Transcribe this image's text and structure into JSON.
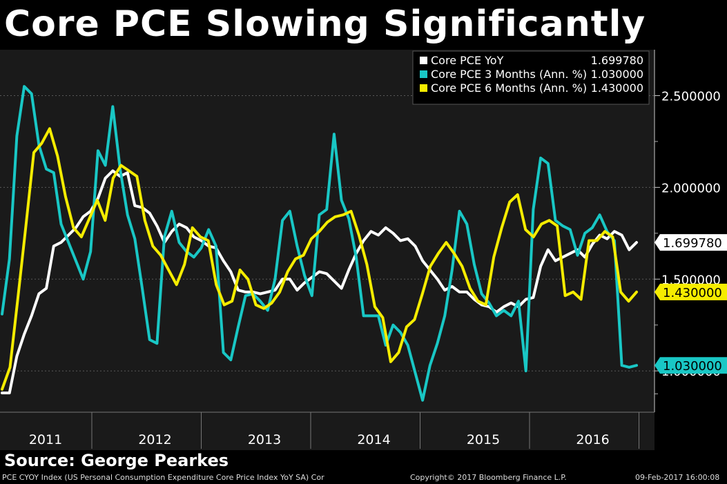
{
  "title": "Core PCE Slowing Significantly",
  "source": "Source: George Pearkes",
  "footer": {
    "index_desc": "PCE CYOY Index (US Personal Consumption Expenditure Core Price Index YoY SA) Cor",
    "copyright": "Copyright© 2017 Bloomberg Finance L.P.",
    "timestamp": "09-Feb-2017 16:00:08"
  },
  "chart_data": {
    "type": "line",
    "title": "Core PCE Slowing Significantly",
    "xlabel": "",
    "ylabel": "",
    "ylim": [
      0.775,
      2.75
    ],
    "y_ticks": [
      {
        "value": 2.5,
        "label": "2.500000"
      },
      {
        "value": 2.0,
        "label": "2.000000"
      },
      {
        "value": 1.5,
        "label": "1.500000"
      },
      {
        "value": 1.0,
        "label": "1.000000"
      }
    ],
    "x_labels": [
      "2011",
      "2012",
      "2013",
      "2014",
      "2015",
      "2016"
    ],
    "x_start": "2011-01",
    "x_end": "2016-12",
    "grid": true,
    "legend_position": "top-right",
    "series": [
      {
        "name": "Core PCE YoY",
        "color": "#ffffff",
        "last_value": "1.699780",
        "values": [
          0.88,
          0.88,
          1.08,
          1.2,
          1.3,
          1.42,
          1.45,
          1.68,
          1.7,
          1.74,
          1.78,
          1.84,
          1.87,
          1.94,
          2.05,
          2.09,
          2.06,
          2.08,
          1.9,
          1.89,
          1.86,
          1.79,
          1.7,
          1.76,
          1.8,
          1.78,
          1.73,
          1.71,
          1.68,
          1.67,
          1.6,
          1.54,
          1.44,
          1.43,
          1.43,
          1.42,
          1.43,
          1.44,
          1.5,
          1.5,
          1.44,
          1.48,
          1.51,
          1.54,
          1.53,
          1.49,
          1.45,
          1.55,
          1.64,
          1.71,
          1.76,
          1.74,
          1.78,
          1.75,
          1.71,
          1.72,
          1.68,
          1.6,
          1.55,
          1.5,
          1.44,
          1.46,
          1.43,
          1.43,
          1.39,
          1.36,
          1.35,
          1.32,
          1.35,
          1.37,
          1.35,
          1.39,
          1.4,
          1.57,
          1.66,
          1.6,
          1.62,
          1.64,
          1.66,
          1.62,
          1.69,
          1.74,
          1.72,
          1.76,
          1.74,
          1.66,
          1.7
        ]
      },
      {
        "name": "Core PCE 3 Months (Ann. %)",
        "color": "#19c7c5",
        "last_value": "1.030000",
        "values": [
          1.31,
          1.61,
          2.28,
          2.55,
          2.51,
          2.23,
          2.1,
          2.08,
          1.8,
          1.7,
          1.6,
          1.5,
          1.65,
          2.2,
          2.12,
          2.44,
          2.1,
          1.85,
          1.72,
          1.45,
          1.17,
          1.15,
          1.73,
          1.87,
          1.7,
          1.65,
          1.62,
          1.67,
          1.77,
          1.68,
          1.1,
          1.06,
          1.24,
          1.41,
          1.42,
          1.38,
          1.33,
          1.5,
          1.82,
          1.87,
          1.68,
          1.52,
          1.41,
          1.85,
          1.88,
          2.29,
          1.93,
          1.83,
          1.62,
          1.3,
          1.3,
          1.3,
          1.14,
          1.25,
          1.21,
          1.14,
          0.99,
          0.84,
          1.03,
          1.15,
          1.3,
          1.55,
          1.87,
          1.8,
          1.58,
          1.42,
          1.37,
          1.3,
          1.33,
          1.3,
          1.38,
          1.0,
          1.88,
          2.16,
          2.13,
          1.82,
          1.79,
          1.77,
          1.63,
          1.75,
          1.78,
          1.85,
          1.76,
          1.71,
          1.03,
          1.02,
          1.03
        ]
      },
      {
        "name": "Core PCE 6 Months (Ann. %)",
        "color": "#f5ec00",
        "last_value": "1.430000",
        "values": [
          0.9,
          1.02,
          1.4,
          1.79,
          2.19,
          2.24,
          2.32,
          2.17,
          1.95,
          1.78,
          1.73,
          1.83,
          1.93,
          1.82,
          2.05,
          2.12,
          2.09,
          2.06,
          1.82,
          1.68,
          1.63,
          1.55,
          1.47,
          1.58,
          1.78,
          1.73,
          1.71,
          1.47,
          1.36,
          1.38,
          1.55,
          1.5,
          1.36,
          1.34,
          1.37,
          1.43,
          1.54,
          1.61,
          1.63,
          1.72,
          1.76,
          1.81,
          1.84,
          1.85,
          1.87,
          1.74,
          1.58,
          1.35,
          1.29,
          1.05,
          1.1,
          1.24,
          1.28,
          1.42,
          1.57,
          1.64,
          1.7,
          1.64,
          1.57,
          1.45,
          1.38,
          1.36,
          1.62,
          1.78,
          1.92,
          1.96,
          1.77,
          1.73,
          1.8,
          1.82,
          1.79,
          1.41,
          1.43,
          1.39,
          1.71,
          1.71,
          1.76,
          1.73,
          1.43,
          1.38,
          1.43
        ]
      }
    ]
  }
}
